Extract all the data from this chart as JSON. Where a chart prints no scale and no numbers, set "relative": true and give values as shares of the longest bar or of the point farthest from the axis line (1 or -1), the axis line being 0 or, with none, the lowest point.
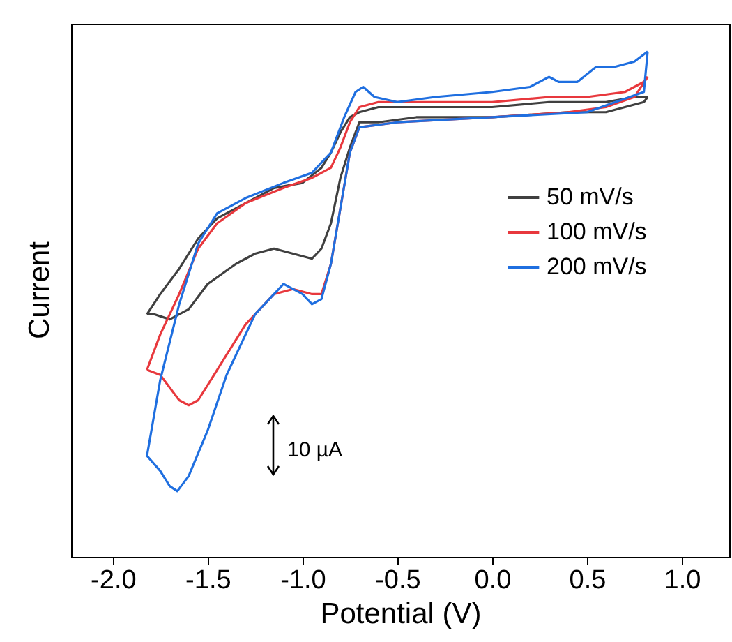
{
  "chart_data": {
    "type": "line",
    "relative": true,
    "xlabel": "Potential (V)",
    "ylabel": "Current",
    "xlim": [
      -2.22,
      1.25
    ],
    "xticks": [
      {
        "value": -2,
        "label": "-2.0"
      },
      -1.5,
      {
        "value": -1,
        "label": "-1.0"
      },
      -0.5,
      {
        "value": 0,
        "label": "0.0"
      },
      0.5,
      {
        "value": 1,
        "label": "1.0"
      }
    ],
    "legend": "right",
    "grid": false,
    "marker": "none",
    "line_style": "solid",
    "annotations": [
      "10 µA"
    ],
    "series": [
      {
        "name": "50 mV/s",
        "color": "#404040",
        "x": [
          -1.82,
          -1.75,
          -1.65,
          -1.55,
          -1.45,
          -1.3,
          -1.15,
          -1.0,
          -0.9,
          -0.85,
          -0.8,
          -0.75,
          -0.7,
          -0.6,
          -0.4,
          0,
          0.3,
          0.5,
          0.6,
          0.75,
          0.82
        ],
        "values": [
          0.48,
          0.52,
          0.57,
          0.63,
          0.67,
          0.7,
          0.73,
          0.74,
          0.77,
          0.8,
          0.84,
          0.87,
          0.88,
          0.89,
          0.89,
          0.89,
          0.9,
          0.9,
          0.9,
          0.91,
          0.91
        ]
      },
      {
        "color": "#404040",
        "x": [
          0.82,
          0.8,
          0.6,
          0.4,
          0,
          -0.4,
          -0.6,
          -0.7,
          -0.75,
          -0.8,
          -0.85,
          -0.9,
          -0.95,
          -1.05,
          -1.15,
          -1.25,
          -1.35,
          -1.5,
          -1.6,
          -1.7,
          -1.78,
          -1.82
        ],
        "values": [
          0.91,
          0.9,
          0.88,
          0.88,
          0.87,
          0.87,
          0.86,
          0.86,
          0.81,
          0.75,
          0.66,
          0.61,
          0.59,
          0.6,
          0.61,
          0.6,
          0.58,
          0.54,
          0.49,
          0.47,
          0.48,
          0.48
        ]
      },
      {
        "name": "100 mV/s",
        "color": "#e8383d",
        "x": [
          -1.82,
          -1.75,
          -1.65,
          -1.6,
          -1.55,
          -1.45,
          -1.3,
          -1.15,
          -1.05,
          -0.95,
          -0.9,
          -0.85,
          -0.8,
          -0.75,
          -0.7,
          -0.5,
          0,
          0.4,
          0.6,
          0.75,
          0.82
        ],
        "values": [
          0.37,
          0.36,
          0.31,
          0.3,
          0.31,
          0.37,
          0.46,
          0.52,
          0.53,
          0.52,
          0.52,
          0.58,
          0.69,
          0.8,
          0.85,
          0.86,
          0.87,
          0.88,
          0.89,
          0.91,
          0.95
        ]
      },
      {
        "color": "#e8383d",
        "x": [
          0.82,
          0.8,
          0.7,
          0.5,
          0.3,
          0,
          -0.4,
          -0.6,
          -0.7,
          -0.75,
          -0.8,
          -0.85,
          -0.95,
          -1.1,
          -1.3,
          -1.45,
          -1.55,
          -1.65,
          -1.75,
          -1.82
        ],
        "values": [
          0.95,
          0.94,
          0.92,
          0.91,
          0.91,
          0.9,
          0.9,
          0.9,
          0.89,
          0.86,
          0.81,
          0.77,
          0.75,
          0.73,
          0.7,
          0.66,
          0.61,
          0.52,
          0.44,
          0.37
        ]
      },
      {
        "name": "200 mV/s",
        "color": "#1f6fe0",
        "x": [
          -1.82,
          -1.75,
          -1.7,
          -1.66,
          -1.6,
          -1.5,
          -1.4,
          -1.25,
          -1.1,
          -1.0,
          -0.95,
          -0.9,
          -0.85,
          -0.8,
          -0.75,
          -0.7,
          -0.5,
          0,
          0.5,
          0.65,
          0.8,
          0.82
        ],
        "values": [
          0.2,
          0.17,
          0.14,
          0.13,
          0.16,
          0.25,
          0.36,
          0.48,
          0.54,
          0.52,
          0.5,
          0.51,
          0.58,
          0.69,
          0.8,
          0.85,
          0.86,
          0.87,
          0.88,
          0.9,
          0.92,
          1.0
        ]
      },
      {
        "color": "#1f6fe0",
        "x": [
          0.82,
          0.75,
          0.65,
          0.55,
          0.45,
          0.35,
          0.3,
          0.2,
          0,
          -0.3,
          -0.5,
          -0.62,
          -0.68,
          -0.72,
          -0.78,
          -0.85,
          -0.95,
          -1.1,
          -1.3,
          -1.45,
          -1.55,
          -1.65,
          -1.75,
          -1.82
        ],
        "values": [
          1.0,
          0.98,
          0.97,
          0.97,
          0.94,
          0.94,
          0.95,
          0.93,
          0.92,
          0.91,
          0.9,
          0.91,
          0.93,
          0.92,
          0.87,
          0.8,
          0.76,
          0.74,
          0.71,
          0.68,
          0.62,
          0.5,
          0.35,
          0.2
        ]
      }
    ]
  }
}
